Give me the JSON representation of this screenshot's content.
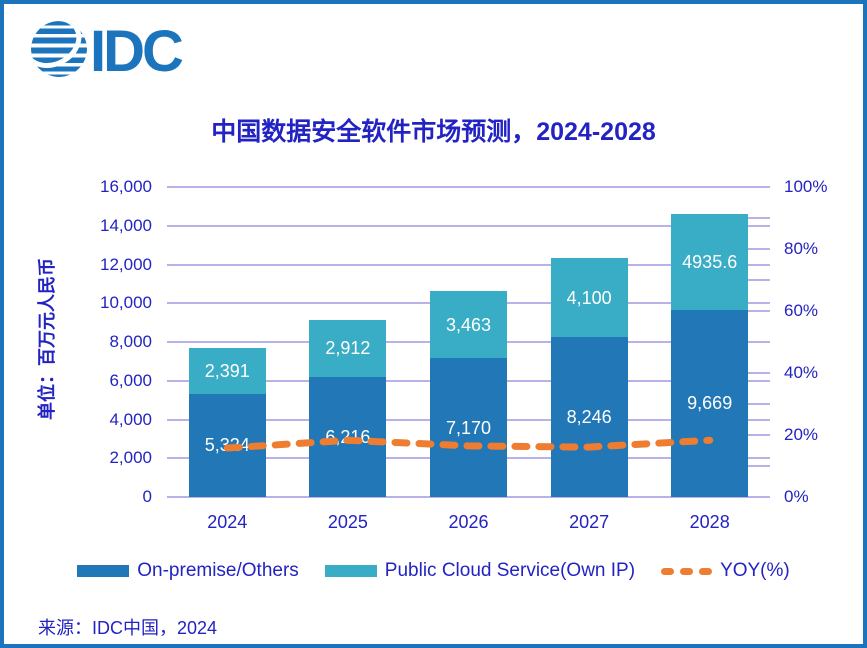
{
  "logo": {
    "text": "IDC"
  },
  "title": "中国数据安全软件市场预测，2024-2028",
  "source": "来源：IDC中国，2024",
  "colors": {
    "frame_border": "#1C75BC",
    "logo_blue": "#1C75BC",
    "text_blue": "#2323C3",
    "bar_dark_blue": "#2277B6",
    "bar_teal": "#39ADC5",
    "yoy_orange": "#EE7D31",
    "gridline": "#B8B2E8",
    "bar_label": "#FFFFFF"
  },
  "chart_data": {
    "type": "bar",
    "subtype": "stacked-bars-with-line",
    "title": "中国数据安全软件市场预测，2024-2028",
    "categories": [
      "2024",
      "2025",
      "2026",
      "2027",
      "2028"
    ],
    "series": [
      {
        "name": "On-premise/Others",
        "type": "bar",
        "axis": "left",
        "color": "#2277B6",
        "values": [
          5324,
          6216,
          7170,
          8246,
          9669
        ],
        "labels": [
          "5,324",
          "6,216",
          "7,170",
          "8,246",
          "9,669"
        ]
      },
      {
        "name": "Public Cloud Service(Own IP)",
        "type": "bar",
        "axis": "left",
        "color": "#39ADC5",
        "values": [
          2391,
          2912,
          3463,
          4100,
          4935.6
        ],
        "labels": [
          "2,391",
          "2,912",
          "3,463",
          "4,100",
          "4935.6"
        ]
      },
      {
        "name": "YOY(%)",
        "type": "line",
        "axis": "right",
        "style": "dashed",
        "color": "#EE7D31",
        "values": [
          15.8,
          18.3,
          16.5,
          16.1,
          18.3
        ]
      }
    ],
    "left_axis": {
      "label": "单位：百万元人民币",
      "min": 0,
      "max": 16000,
      "step": 2000,
      "tick_labels": [
        "0",
        "2,000",
        "4,000",
        "6,000",
        "8,000",
        "10,000",
        "12,000",
        "14,000",
        "16,000"
      ]
    },
    "right_axis": {
      "min": 0,
      "max": 100,
      "label_step": 20,
      "tick_step": 10,
      "tick_labels": [
        "0%",
        "20%",
        "40%",
        "60%",
        "80%",
        "100%"
      ]
    },
    "grid": true,
    "legend_position": "bottom"
  }
}
